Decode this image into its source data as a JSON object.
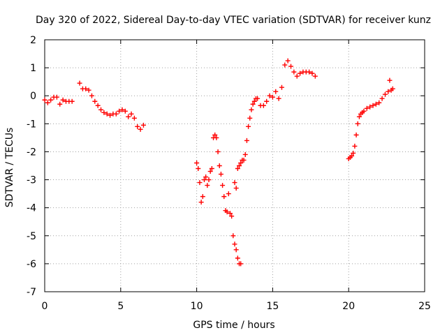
{
  "chart_data": {
    "type": "scatter",
    "title": "Day 320 of 2022, Sidereal Day-to-day VTEC variation (SDTVAR) for receiver kunz",
    "xlabel": "GPS time / hours",
    "ylabel": "SDTVAR / TECUs",
    "xlim": [
      0,
      25
    ],
    "ylim": [
      -7,
      2
    ],
    "xticks": [
      0,
      5,
      10,
      15,
      20,
      25
    ],
    "yticks": [
      -7,
      -6,
      -5,
      -4,
      -3,
      -2,
      -1,
      0,
      1,
      2
    ],
    "grid": true,
    "legend": "none",
    "marker": "plus",
    "color": "#ff0000",
    "segments": [
      {
        "x": [
          0,
          0.2,
          0.4,
          0.6,
          0.8,
          1.0,
          1.2,
          1.4,
          1.6,
          1.8
        ],
        "y": [
          -0.15,
          -0.25,
          -0.15,
          -0.05,
          -0.05,
          -0.3,
          -0.15,
          -0.2,
          -0.2,
          -0.2
        ]
      },
      {
        "x": [
          2.3,
          2.5,
          2.7,
          2.9,
          3.1,
          3.3,
          3.5,
          3.7,
          3.9,
          4.1,
          4.3,
          4.5,
          4.7,
          4.9,
          5.1,
          5.3,
          5.5,
          5.7,
          5.9,
          6.1,
          6.3,
          6.5
        ],
        "y": [
          0.45,
          0.25,
          0.25,
          0.2,
          0.0,
          -0.2,
          -0.35,
          -0.5,
          -0.6,
          -0.65,
          -0.7,
          -0.65,
          -0.65,
          -0.55,
          -0.5,
          -0.55,
          -0.75,
          -0.65,
          -0.8,
          -1.1,
          -1.2,
          -1.05
        ]
      },
      {
        "x": [
          10.0,
          10.1,
          10.2,
          10.3,
          10.4,
          10.5,
          10.6,
          10.7,
          10.8,
          10.9,
          11.0,
          11.1,
          11.2,
          11.3,
          11.4,
          11.5,
          11.6,
          11.7,
          11.8,
          11.9,
          12.0,
          12.1,
          12.2,
          12.3,
          12.4,
          12.5,
          12.6,
          12.7,
          12.8,
          12.9
        ],
        "y": [
          -2.4,
          -2.6,
          -3.1,
          -3.8,
          -3.6,
          -3.0,
          -2.9,
          -3.2,
          -3.0,
          -2.7,
          -2.6,
          -1.5,
          -1.4,
          -1.5,
          -2.0,
          -2.5,
          -2.8,
          -3.2,
          -3.6,
          -4.1,
          -4.15,
          -3.5,
          -4.2,
          -4.3,
          -5.0,
          -5.3,
          -5.5,
          -5.8,
          -6.0,
          -6.0
        ]
      },
      {
        "x": [
          12.5,
          12.6,
          12.7,
          12.8,
          12.9,
          13.0,
          13.1,
          13.2,
          13.3,
          13.4,
          13.5,
          13.6,
          13.7,
          13.8,
          13.9,
          14.0,
          14.2,
          14.4,
          14.6,
          14.8,
          15.0,
          15.2,
          15.4,
          15.6,
          15.8,
          16.0,
          16.2,
          16.4,
          16.6,
          16.8,
          17.0,
          17.2,
          17.4,
          17.6,
          17.8
        ],
        "y": [
          -3.1,
          -3.3,
          -2.6,
          -2.5,
          -2.4,
          -2.3,
          -2.3,
          -2.1,
          -1.6,
          -1.1,
          -0.8,
          -0.5,
          -0.3,
          -0.2,
          -0.1,
          -0.1,
          -0.35,
          -0.35,
          -0.2,
          0.0,
          -0.05,
          0.15,
          -0.1,
          0.3,
          1.1,
          1.25,
          1.05,
          0.85,
          0.7,
          0.8,
          0.85,
          0.85,
          0.85,
          0.8,
          0.7
        ]
      },
      {
        "x": [
          20.0,
          20.1,
          20.2,
          20.3,
          20.4,
          20.5,
          20.6,
          20.7,
          20.8,
          20.9,
          21.0,
          21.2,
          21.4,
          21.6,
          21.8,
          22.0,
          22.2,
          22.4,
          22.6,
          22.8,
          22.9,
          22.7
        ],
        "y": [
          -2.25,
          -2.2,
          -2.15,
          -2.05,
          -1.8,
          -1.4,
          -1.0,
          -0.75,
          -0.65,
          -0.6,
          -0.55,
          -0.45,
          -0.4,
          -0.35,
          -0.3,
          -0.25,
          -0.1,
          0.05,
          0.15,
          0.2,
          0.25,
          0.55
        ]
      }
    ]
  }
}
